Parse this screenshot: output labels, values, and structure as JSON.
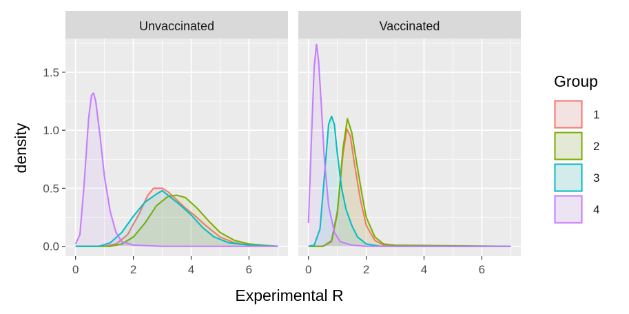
{
  "chart_data": {
    "type": "area",
    "xlabel": "Experimental R",
    "ylabel": "density",
    "xlim": [
      -0.35,
      7.35
    ],
    "ylim": [
      -0.085,
      1.79
    ],
    "x_ticks": [
      0,
      2,
      4,
      6
    ],
    "y_ticks": [
      0.0,
      0.5,
      1.0,
      1.5
    ],
    "y_tick_labels": [
      "0.0",
      "0.5",
      "1.0",
      "1.5"
    ],
    "grid": true,
    "legend": {
      "title": "Group",
      "placement": "right",
      "entries": [
        "1",
        "2",
        "3",
        "4"
      ]
    },
    "colors": {
      "1": "#F8766D",
      "2": "#7CAE00",
      "3": "#00BFC4",
      "4": "#C77CFF",
      "panel_bg": "#EBEBEB",
      "strip_bg": "#D9D9D9"
    },
    "panels": [
      {
        "label": "Unvaccinated",
        "series": [
          {
            "name": "1",
            "points": [
              [
                0.0,
                0.0
              ],
              [
                1.0,
                0.0
              ],
              [
                1.4,
                0.02
              ],
              [
                1.8,
                0.1
              ],
              [
                2.2,
                0.28
              ],
              [
                2.5,
                0.44
              ],
              [
                2.7,
                0.5
              ],
              [
                3.0,
                0.5
              ],
              [
                3.2,
                0.47
              ],
              [
                3.5,
                0.4
              ],
              [
                3.8,
                0.33
              ],
              [
                4.1,
                0.27
              ],
              [
                4.5,
                0.18
              ],
              [
                5.0,
                0.08
              ],
              [
                5.5,
                0.03
              ],
              [
                6.0,
                0.01
              ],
              [
                7.0,
                0.0
              ]
            ]
          },
          {
            "name": "2",
            "points": [
              [
                0.0,
                0.0
              ],
              [
                1.2,
                0.0
              ],
              [
                1.6,
                0.02
              ],
              [
                2.0,
                0.08
              ],
              [
                2.4,
                0.2
              ],
              [
                2.8,
                0.35
              ],
              [
                3.2,
                0.43
              ],
              [
                3.5,
                0.44
              ],
              [
                3.8,
                0.42
              ],
              [
                4.2,
                0.33
              ],
              [
                4.6,
                0.22
              ],
              [
                5.0,
                0.12
              ],
              [
                5.5,
                0.05
              ],
              [
                6.0,
                0.02
              ],
              [
                6.5,
                0.01
              ],
              [
                7.0,
                0.0
              ]
            ]
          },
          {
            "name": "3",
            "points": [
              [
                0.0,
                0.0
              ],
              [
                0.8,
                0.0
              ],
              [
                1.2,
                0.03
              ],
              [
                1.6,
                0.12
              ],
              [
                2.0,
                0.26
              ],
              [
                2.4,
                0.38
              ],
              [
                2.8,
                0.45
              ],
              [
                3.0,
                0.48
              ],
              [
                3.2,
                0.44
              ],
              [
                3.6,
                0.36
              ],
              [
                4.0,
                0.27
              ],
              [
                4.4,
                0.16
              ],
              [
                4.8,
                0.08
              ],
              [
                5.3,
                0.03
              ],
              [
                6.0,
                0.01
              ],
              [
                7.0,
                0.0
              ]
            ]
          },
          {
            "name": "4",
            "points": [
              [
                0.0,
                0.02
              ],
              [
                0.15,
                0.1
              ],
              [
                0.3,
                0.55
              ],
              [
                0.45,
                1.1
              ],
              [
                0.55,
                1.3
              ],
              [
                0.62,
                1.32
              ],
              [
                0.7,
                1.25
              ],
              [
                0.85,
                0.95
              ],
              [
                1.0,
                0.6
              ],
              [
                1.2,
                0.3
              ],
              [
                1.4,
                0.12
              ],
              [
                1.6,
                0.04
              ],
              [
                2.0,
                0.01
              ],
              [
                3.0,
                0.0
              ],
              [
                7.0,
                0.0
              ]
            ]
          }
        ]
      },
      {
        "label": "Vaccinated",
        "series": [
          {
            "name": "1",
            "points": [
              [
                0.0,
                0.0
              ],
              [
                0.5,
                0.0
              ],
              [
                0.8,
                0.05
              ],
              [
                1.0,
                0.3
              ],
              [
                1.2,
                0.8
              ],
              [
                1.33,
                1.01
              ],
              [
                1.45,
                0.95
              ],
              [
                1.6,
                0.7
              ],
              [
                1.8,
                0.4
              ],
              [
                2.0,
                0.18
              ],
              [
                2.3,
                0.05
              ],
              [
                2.6,
                0.01
              ],
              [
                3.0,
                0.0
              ],
              [
                7.0,
                0.0
              ]
            ]
          },
          {
            "name": "2",
            "points": [
              [
                0.0,
                0.0
              ],
              [
                0.5,
                0.0
              ],
              [
                0.8,
                0.04
              ],
              [
                1.0,
                0.28
              ],
              [
                1.2,
                0.85
              ],
              [
                1.35,
                1.1
              ],
              [
                1.5,
                0.98
              ],
              [
                1.65,
                0.75
              ],
              [
                1.85,
                0.45
              ],
              [
                2.0,
                0.25
              ],
              [
                2.3,
                0.08
              ],
              [
                2.6,
                0.02
              ],
              [
                3.0,
                0.01
              ],
              [
                7.0,
                0.0
              ]
            ]
          },
          {
            "name": "3",
            "points": [
              [
                0.0,
                0.0
              ],
              [
                0.2,
                0.01
              ],
              [
                0.4,
                0.15
              ],
              [
                0.55,
                0.6
              ],
              [
                0.7,
                1.05
              ],
              [
                0.8,
                1.12
              ],
              [
                0.9,
                1.05
              ],
              [
                1.0,
                0.8
              ],
              [
                1.15,
                0.5
              ],
              [
                1.3,
                0.32
              ],
              [
                1.5,
                0.18
              ],
              [
                1.7,
                0.08
              ],
              [
                2.0,
                0.02
              ],
              [
                2.5,
                0.0
              ],
              [
                7.0,
                0.0
              ]
            ]
          },
          {
            "name": "4",
            "points": [
              [
                0.0,
                0.2
              ],
              [
                0.1,
                0.9
              ],
              [
                0.2,
                1.55
              ],
              [
                0.28,
                1.74
              ],
              [
                0.35,
                1.6
              ],
              [
                0.45,
                1.2
              ],
              [
                0.55,
                0.75
              ],
              [
                0.7,
                0.35
              ],
              [
                0.9,
                0.12
              ],
              [
                1.1,
                0.04
              ],
              [
                1.5,
                0.01
              ],
              [
                2.0,
                0.0
              ],
              [
                7.0,
                0.0
              ]
            ]
          }
        ]
      }
    ]
  }
}
